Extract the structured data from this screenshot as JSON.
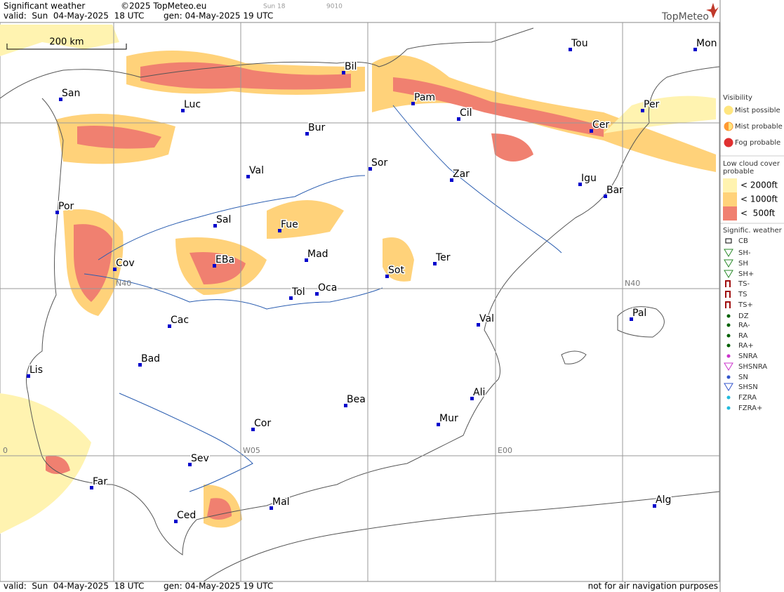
{
  "header": {
    "title": "Significant weather",
    "copyright": "©2025 TopMeteo.eu",
    "valid": "valid:  Sun  04-May-2025  18 UTC",
    "gen": "gen: 04-May-2025 19 UTC",
    "small_left": "Sun 18",
    "small_right": "9010",
    "brand": "TopMeteo"
  },
  "scale": "200 km",
  "grid_labels": [
    "N40",
    "N40",
    "W05",
    "E00",
    "0"
  ],
  "cities": [
    "San",
    "Luc",
    "Bil",
    "Pam",
    "Cil",
    "Tou",
    "Mon",
    "Per",
    "Cer",
    "Bur",
    "Val",
    "Sor",
    "Zar",
    "Igu",
    "Bar",
    "Por",
    "Sal",
    "Fue",
    "Mad",
    "Ter",
    "Cov",
    "EBa",
    "Sot",
    "Tol",
    "Oca",
    "Pal",
    "Val",
    "Cac",
    "Bad",
    "Lis",
    "Ali",
    "Bea",
    "Mur",
    "Cor",
    "Sev",
    "Far",
    "Ced",
    "Mal",
    "Alg"
  ],
  "legend": {
    "visibility": {
      "title": "Visibility",
      "items": [
        "Mist possible",
        "Mist probable",
        "Fog probable"
      ]
    },
    "cloud": {
      "title": [
        "Low cloud cover",
        "probable"
      ],
      "items": [
        "< 2000ft",
        "< 1000ft",
        "<  500ft"
      ]
    },
    "weather": {
      "title": "Signific. weather",
      "items": [
        "CB",
        "SH-",
        "SH",
        "SH+",
        "TS-",
        "TS",
        "TS+",
        "DZ",
        "RA-",
        "RA",
        "RA+",
        "SNRA",
        "SHSNRA",
        "SN",
        "SHSN",
        "FZRA",
        "FZRA+"
      ]
    }
  },
  "footer": {
    "valid": "valid:  Sun  04-May-2025  18 UTC",
    "gen": "gen: 04-May-2025 19 UTC",
    "note": "not for air navigation purposes"
  }
}
